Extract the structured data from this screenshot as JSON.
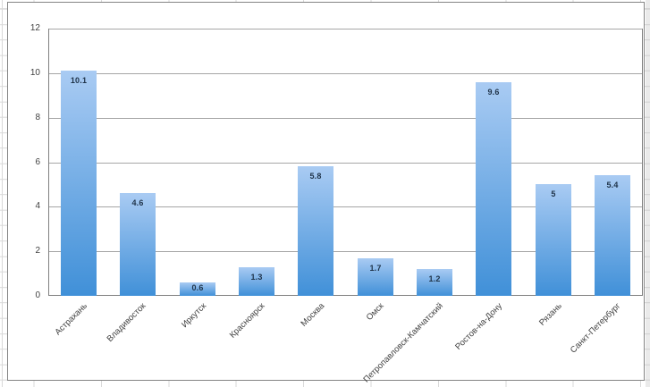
{
  "chart_data": {
    "type": "bar",
    "title": "",
    "xlabel": "",
    "ylabel": "",
    "categories": [
      "Астрахань",
      "Владивосток",
      "Иркутск",
      "Красноярск",
      "Москва",
      "Омск",
      "Петропавловск-Камчатский",
      "Ростов-на-Дону",
      "Рязань",
      "Санкт-Петербург"
    ],
    "values": [
      10.1,
      4.6,
      0.6,
      1.3,
      5.8,
      1.7,
      1.2,
      9.6,
      5,
      5.4
    ],
    "data_labels": [
      "10.1",
      "4.6",
      "0.6",
      "1.3",
      "5.8",
      "1.7",
      "1.2",
      "9.6",
      "5",
      "5.4"
    ],
    "data_label_position": "inside-end",
    "ylim": [
      0,
      12
    ],
    "yticks": [
      12,
      10,
      8,
      6,
      4,
      2,
      0
    ],
    "x_tick_rotation_deg": 45,
    "grid": true,
    "legend": "none",
    "colors": {
      "bar_gradient_top": "#a9cbf3",
      "bar_gradient_bottom": "#4090d8",
      "data_label_text": "#1f3349",
      "axis_text": "#3f3f3f",
      "gridline": "#a6a6a6",
      "axis_line": "#7f7f7f",
      "chart_border": "#848484",
      "sheet_gridline": "#d9d9d9"
    }
  }
}
